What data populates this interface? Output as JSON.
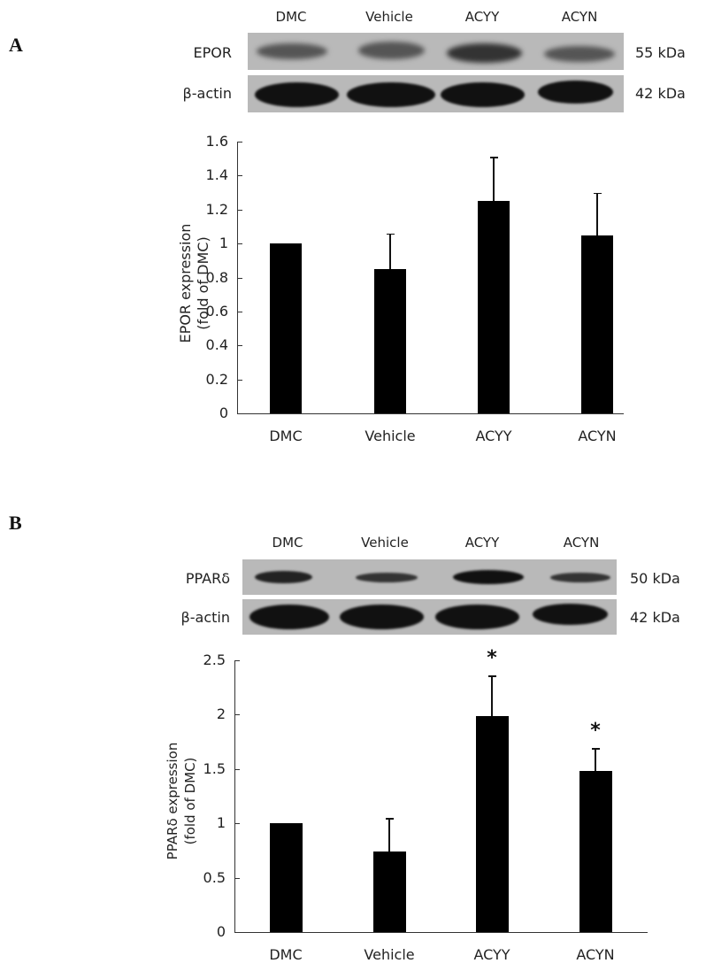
{
  "panels": {
    "A": {
      "letter": "A",
      "blot": {
        "lanes": [
          "DMC",
          "Vehicle",
          "ACYY",
          "ACYN"
        ],
        "rows": [
          {
            "label": "EPOR",
            "kda": "55 kDa"
          },
          {
            "label": "β-actin",
            "kda": "42 kDa"
          }
        ]
      },
      "ylabel_line1": "EPOR expression",
      "ylabel_line2": "(fold of DMC)"
    },
    "B": {
      "letter": "B",
      "blot": {
        "lanes": [
          "DMC",
          "Vehicle",
          "ACYY",
          "ACYN"
        ],
        "rows": [
          {
            "label": "PPARδ",
            "kda": "50 kDa"
          },
          {
            "label": "β-actin",
            "kda": "42 kDa"
          }
        ]
      },
      "ylabel_line1": "PPARδ expression",
      "ylabel_line2": "(fold of DMC)"
    }
  },
  "chart_data": [
    {
      "type": "bar",
      "title": "",
      "categories": [
        "DMC",
        "Vehicle",
        "ACYY",
        "ACYN"
      ],
      "values": [
        1.0,
        0.85,
        1.25,
        1.05
      ],
      "error_upper": [
        0,
        1.06,
        1.51,
        1.3
      ],
      "significance": [
        "",
        "",
        "",
        ""
      ],
      "xlabel": "",
      "ylabel": "EPOR expression (fold of DMC)",
      "ylim": [
        0,
        1.6
      ],
      "yticks": [
        "0",
        "0.2",
        "0.4",
        "0.6",
        "0.8",
        "1",
        "1.2",
        "1.4",
        "1.6"
      ],
      "grid": false,
      "legend": null
    },
    {
      "type": "bar",
      "title": "",
      "categories": [
        "DMC",
        "Vehicle",
        "ACYY",
        "ACYN"
      ],
      "values": [
        1.0,
        0.74,
        1.99,
        1.48
      ],
      "error_upper": [
        0,
        1.05,
        2.36,
        1.69
      ],
      "significance": [
        "",
        "",
        "*",
        "*"
      ],
      "xlabel": "",
      "ylabel": "PPARδ expression (fold of DMC)",
      "ylim": [
        0,
        2.5
      ],
      "yticks": [
        "0",
        "0.5",
        "1",
        "1.5",
        "2",
        "2.5"
      ],
      "grid": false,
      "legend": null
    }
  ]
}
